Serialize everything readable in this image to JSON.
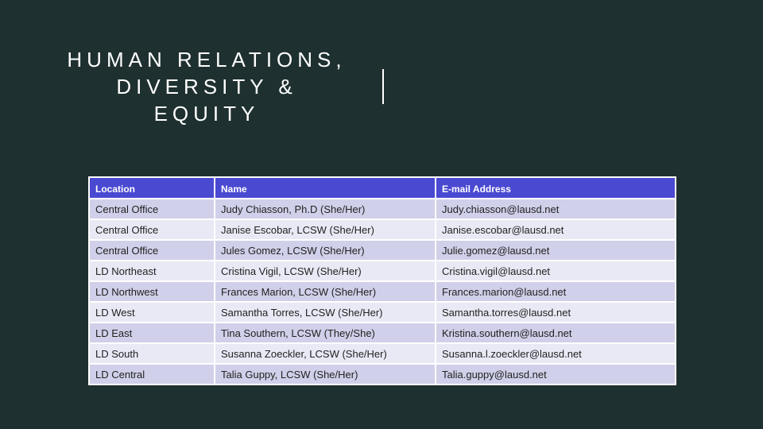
{
  "title": {
    "lines": [
      "HUMAN RELATIONS,",
      "DIVERSITY &",
      "EQUITY"
    ]
  },
  "table": {
    "headers": [
      "Location",
      "Name",
      "E-mail Address"
    ],
    "rows": [
      [
        "Central Office",
        "Judy Chiasson, Ph.D (She/Her)",
        "Judy.chiasson@lausd.net"
      ],
      [
        "Central Office",
        "Janise Escobar, LCSW (She/Her)",
        "Janise.escobar@lausd.net"
      ],
      [
        "Central Office",
        "Jules Gomez, LCSW (She/Her)",
        "Julie.gomez@lausd.net"
      ],
      [
        "LD Northeast",
        "Cristina Vigil, LCSW (She/Her)",
        "Cristina.vigil@lausd.net"
      ],
      [
        "LD Northwest",
        "Frances Marion, LCSW (She/Her)",
        "Frances.marion@lausd.net"
      ],
      [
        "LD West",
        "Samantha Torres, LCSW (She/Her)",
        "Samantha.torres@lausd.net"
      ],
      [
        "LD East",
        "Tina Southern, LCSW (They/She)",
        "Kristina.southern@lausd.net"
      ],
      [
        "LD South",
        "Susanna Zoeckler, LCSW (She/Her)",
        "Susanna.l.zoeckler@lausd.net"
      ],
      [
        "LD Central",
        "Talia Guppy, LCSW (She/Her)",
        "Talia.guppy@lausd.net"
      ]
    ]
  },
  "colors": {
    "background": "#1e302f",
    "header_bg": "#4a49d2",
    "row_odd": "#d0d0ea",
    "row_even": "#e9e9f5"
  }
}
